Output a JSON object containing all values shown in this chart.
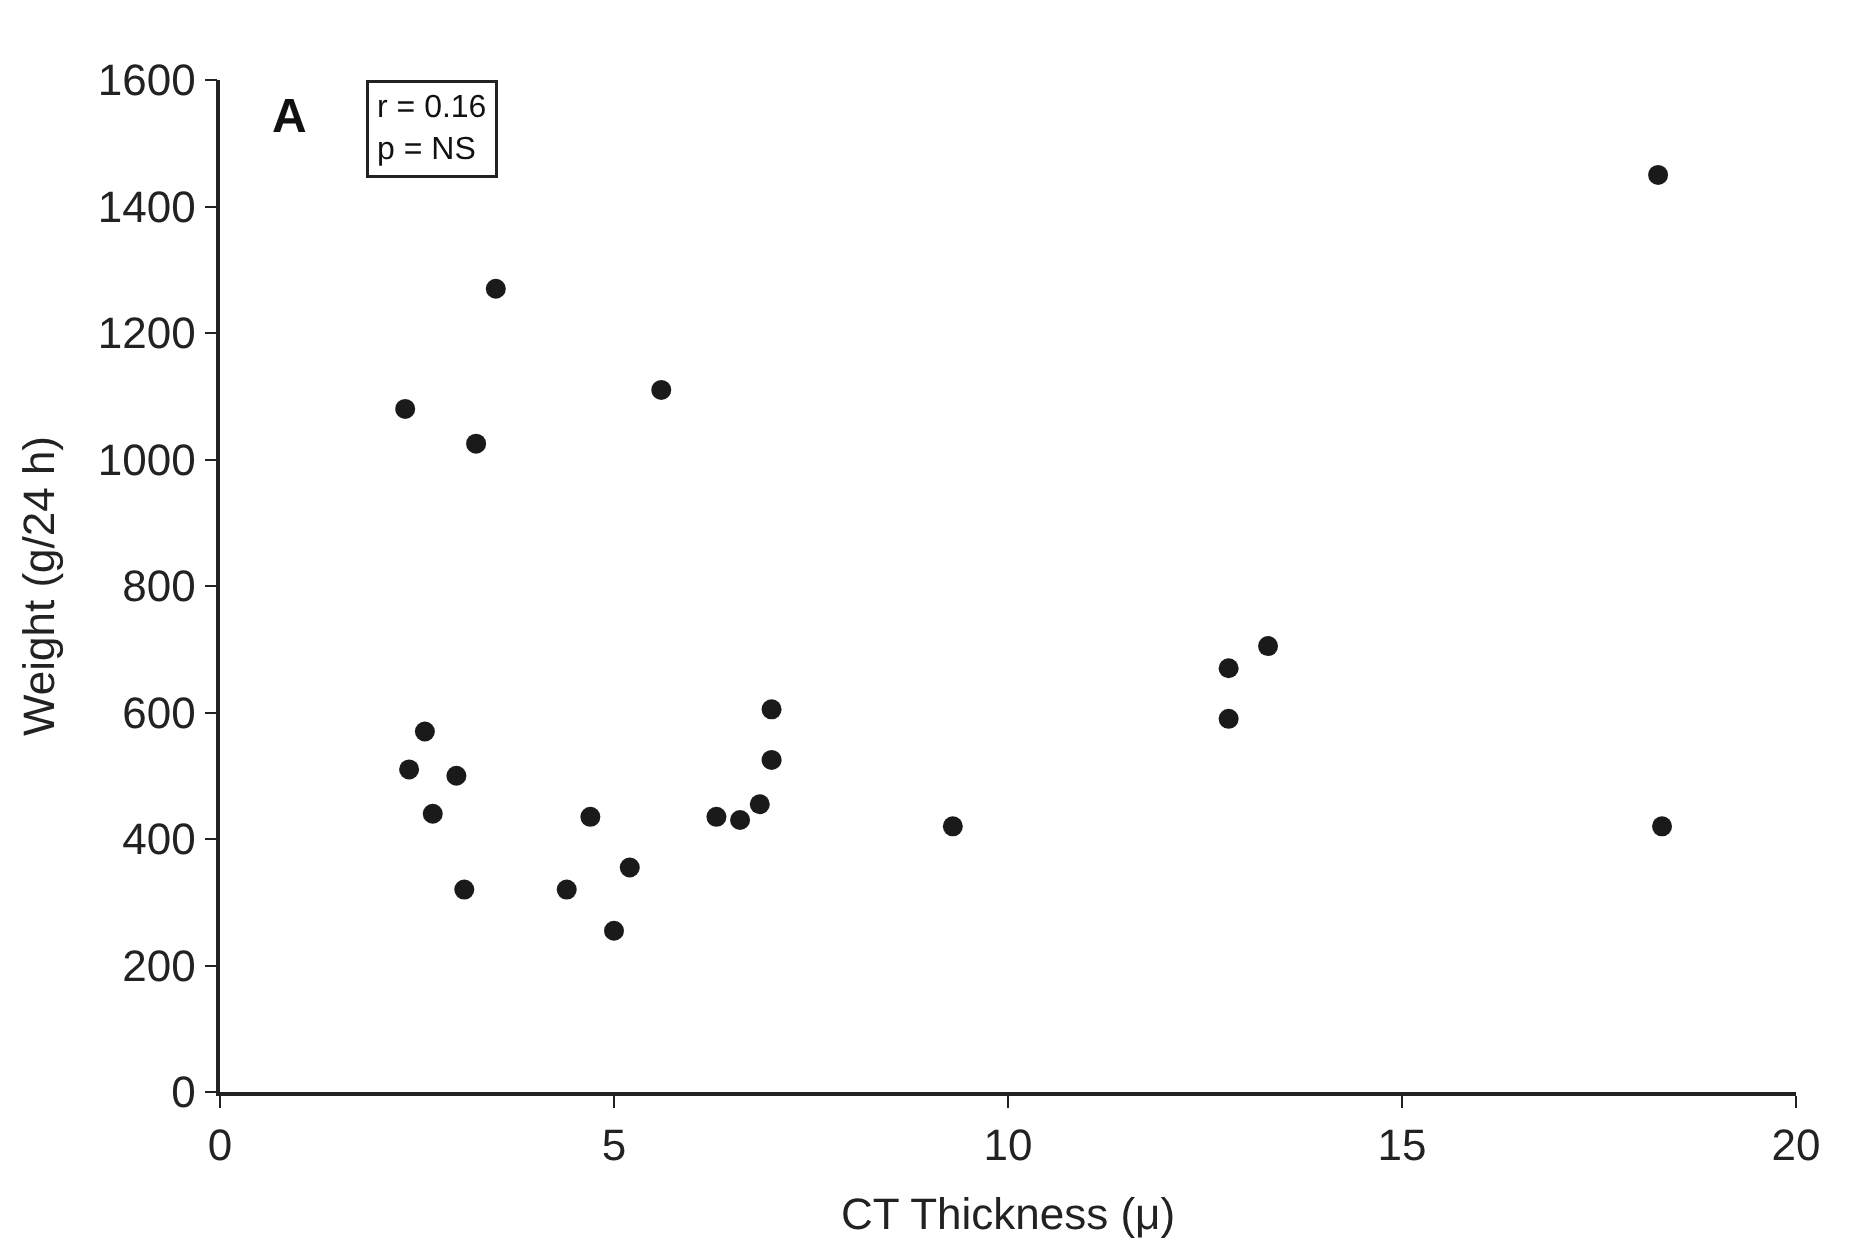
{
  "chart_data": {
    "type": "scatter",
    "xlabel": "CT Thickness (μ)",
    "ylabel": "Weight (g/24 h)",
    "annotations": [
      "A",
      "r = 0.16\np = NS"
    ],
    "series": [
      {
        "color": "#1a1a1a",
        "x": [
          2.35,
          2.6,
          2.4,
          2.7,
          3.0,
          3.1,
          3.25,
          3.5,
          4.4,
          4.7,
          5.0,
          5.2,
          5.6,
          6.3,
          6.6,
          6.85,
          7.0,
          7.0,
          9.3,
          12.8,
          12.8,
          13.3,
          18.25,
          18.3
        ],
        "values": [
          1080,
          570,
          510,
          440,
          500,
          320,
          1025,
          1270,
          320,
          435,
          255,
          355,
          1110,
          435,
          430,
          455,
          525,
          605,
          420,
          670,
          590,
          705,
          1450,
          420
        ]
      }
    ],
    "xlim": [
      0,
      20
    ],
    "xticks": [
      0,
      5,
      10,
      15,
      20
    ],
    "ylim": [
      0,
      1600
    ],
    "yticks": [
      0,
      200,
      400,
      600,
      800,
      1000,
      1200,
      1400,
      1600
    ],
    "marker": "circle",
    "legend": false
  }
}
